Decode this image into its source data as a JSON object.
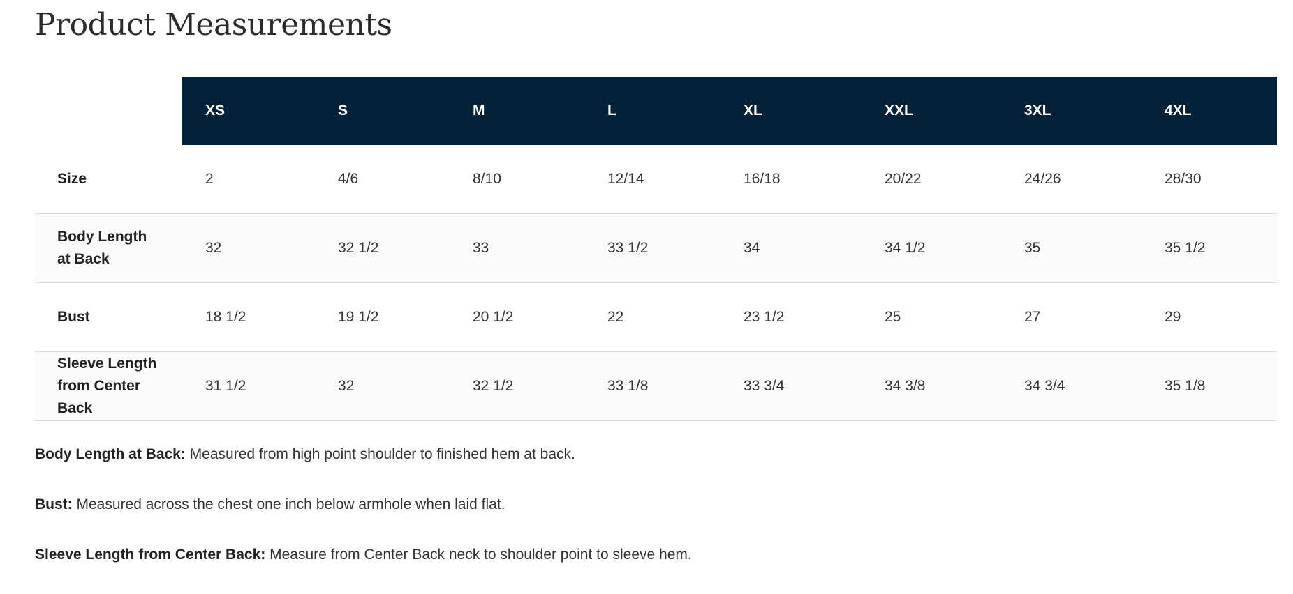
{
  "title": "Product Measurements",
  "table": {
    "headers": [
      "XS",
      "S",
      "M",
      "L",
      "XL",
      "XXL",
      "3XL",
      "4XL"
    ],
    "rows": [
      {
        "label": "Size",
        "values": [
          "2",
          "4/6",
          "8/10",
          "12/14",
          "16/18",
          "20/22",
          "24/26",
          "28/30"
        ]
      },
      {
        "label": "Body Length at Back",
        "values": [
          "32",
          "32 1/2",
          "33",
          "33 1/2",
          "34",
          "34 1/2",
          "35",
          "35 1/2"
        ]
      },
      {
        "label": "Bust",
        "values": [
          "18 1/2",
          "19 1/2",
          "20 1/2",
          "22",
          "23 1/2",
          "25",
          "27",
          "29"
        ]
      },
      {
        "label": "Sleeve Length from Center Back",
        "values": [
          "31 1/2",
          "32",
          "32 1/2",
          "33 1/8",
          "33 3/4",
          "34 3/8",
          "34 3/4",
          "35 1/8"
        ]
      }
    ]
  },
  "notes": [
    {
      "term": "Body Length at Back:",
      "text": " Measured from high point shoulder to finished hem at back."
    },
    {
      "term": "Bust:",
      "text": " Measured across the chest one inch below armhole when laid flat."
    },
    {
      "term": "Sleeve Length from Center Back:",
      "text": " Measure from Center Back neck to shoulder point to sleeve hem."
    }
  ],
  "colors": {
    "header_bg": "#03223a",
    "header_text": "#ffffff"
  }
}
